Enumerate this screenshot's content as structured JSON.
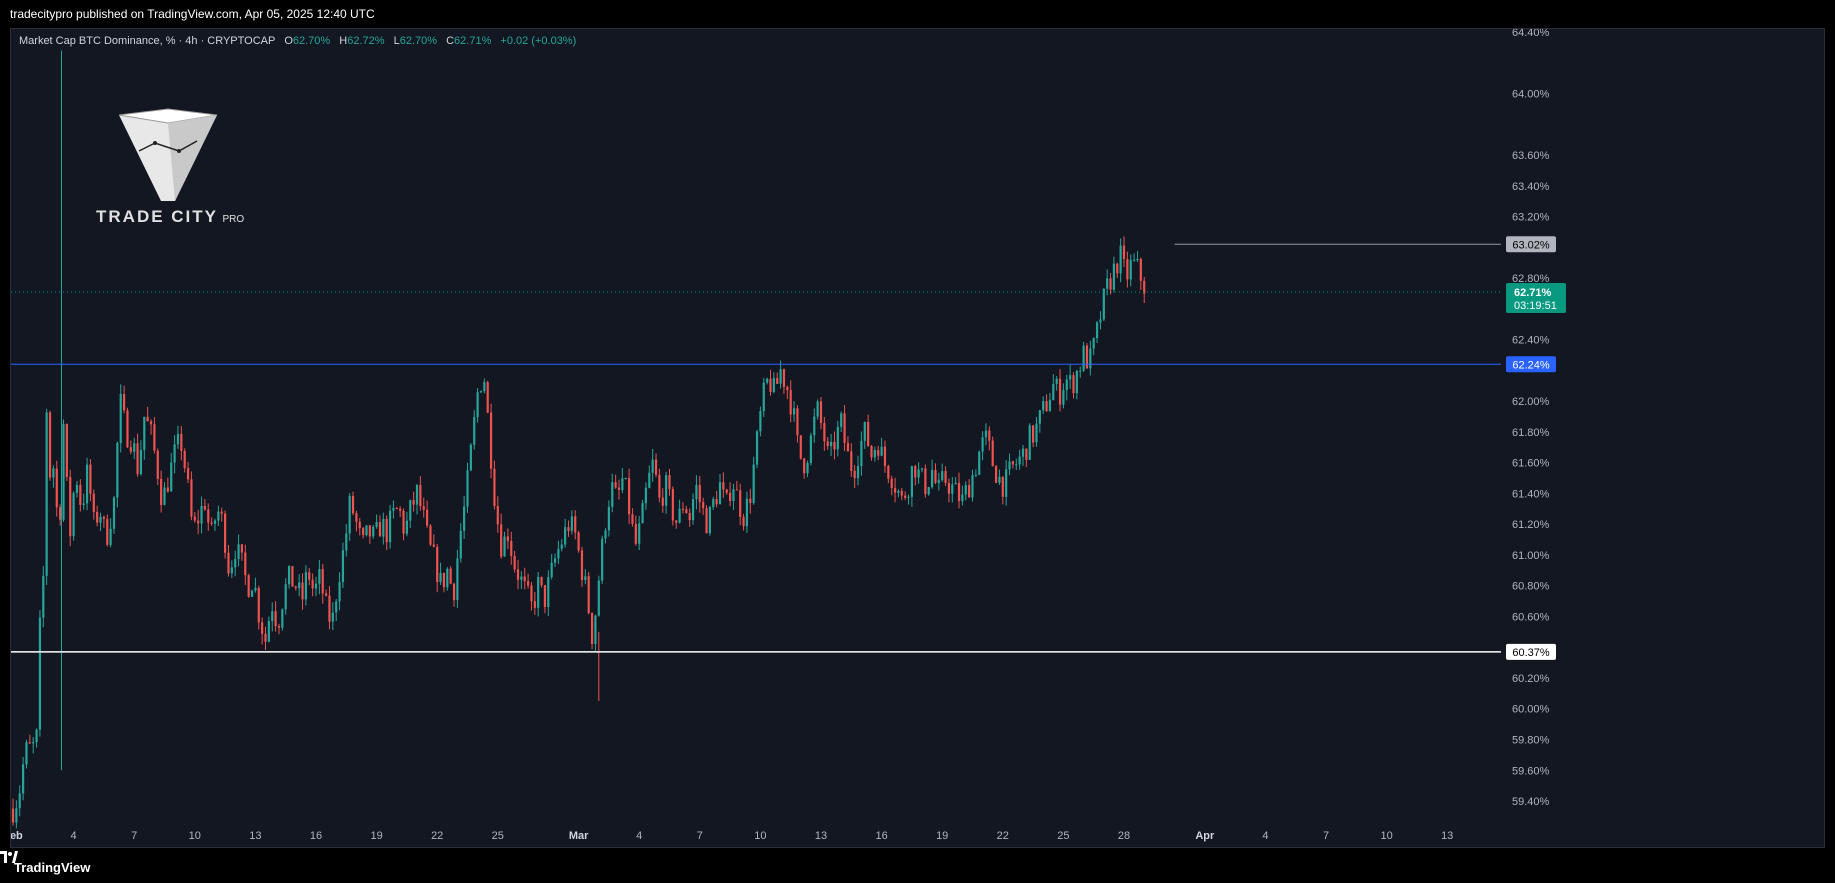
{
  "publish_line": "tradecitypro published on TradingView.com, Apr 05, 2025 12:40 UTC",
  "legend": {
    "symbol": "Market Cap BTC Dominance, % · 4h · CRYPTOCAP",
    "open_label": "O",
    "open": "62.70%",
    "high_label": "H",
    "high": "62.72%",
    "low_label": "L",
    "low": "62.70%",
    "close_label": "C",
    "close": "62.71%",
    "change": "+0.02 (+0.03%)"
  },
  "logo": {
    "main": "TRADE CITY",
    "sub": "PRO"
  },
  "footer": {
    "brand": "TradingView"
  },
  "colors": {
    "background": "#131722",
    "up": "#26a69a",
    "down": "#ef5350",
    "resistance_line": "#2962ff",
    "support_line": "#ffffff",
    "top_line": "#9598a1",
    "current_price_tag": "#089981"
  },
  "chart_data": {
    "type": "candlestick",
    "timeframe": "4h",
    "y_axis_ticks": [
      "64.40%",
      "64.00%",
      "63.60%",
      "63.40%",
      "63.20%",
      "62.80%",
      "62.40%",
      "62.00%",
      "61.80%",
      "61.60%",
      "61.40%",
      "61.20%",
      "61.00%",
      "60.80%",
      "60.60%",
      "60.20%",
      "60.00%",
      "59.80%",
      "59.60%",
      "59.40%"
    ],
    "y_ticks_values": [
      64.4,
      64.0,
      63.6,
      63.4,
      63.2,
      62.8,
      62.4,
      62.0,
      61.8,
      61.6,
      61.4,
      61.2,
      61.0,
      60.8,
      60.6,
      60.2,
      60.0,
      59.8,
      59.6,
      59.4
    ],
    "ylim": [
      59.27,
      64.42
    ],
    "x_axis_ticks": [
      {
        "label": "Feb",
        "day": 1,
        "bold": true
      },
      {
        "label": "4",
        "day": 4
      },
      {
        "label": "7",
        "day": 7
      },
      {
        "label": "10",
        "day": 10
      },
      {
        "label": "13",
        "day": 13
      },
      {
        "label": "16",
        "day": 16
      },
      {
        "label": "19",
        "day": 19
      },
      {
        "label": "22",
        "day": 22
      },
      {
        "label": "25",
        "day": 25
      },
      {
        "label": "Mar",
        "day": 29,
        "bold": true
      },
      {
        "label": "4",
        "day": 32
      },
      {
        "label": "7",
        "day": 35
      },
      {
        "label": "10",
        "day": 38
      },
      {
        "label": "13",
        "day": 41
      },
      {
        "label": "16",
        "day": 44
      },
      {
        "label": "19",
        "day": 47
      },
      {
        "label": "22",
        "day": 50
      },
      {
        "label": "25",
        "day": 53
      },
      {
        "label": "28",
        "day": 56
      },
      {
        "label": "Apr",
        "day": 60,
        "bold": true
      },
      {
        "label": "4",
        "day": 63
      },
      {
        "label": "7",
        "day": 66
      },
      {
        "label": "10",
        "day": 69
      },
      {
        "label": "13",
        "day": 72
      }
    ],
    "price_levels": [
      {
        "name": "range-top",
        "value": 63.02,
        "label": "63.02%"
      },
      {
        "name": "resistance",
        "value": 62.24,
        "label": "62.24%"
      },
      {
        "name": "support",
        "value": 60.37,
        "label": "60.37%"
      }
    ],
    "current_price": {
      "value": 62.71,
      "label": "62.71%",
      "countdown": "03:19:51"
    },
    "closes_path": [
      [
        1.0,
        59.35
      ],
      [
        1.3,
        59.45
      ],
      [
        1.6,
        59.72
      ],
      [
        2.0,
        59.75
      ],
      [
        2.2,
        59.82
      ],
      [
        2.3,
        60.45
      ],
      [
        2.5,
        60.85
      ],
      [
        2.6,
        61.55
      ],
      [
        2.7,
        62.15
      ],
      [
        2.8,
        61.4
      ],
      [
        2.9,
        61.8
      ],
      [
        3.1,
        61.35
      ],
      [
        3.3,
        61.2
      ],
      [
        3.5,
        61.85
      ],
      [
        3.8,
        61.1
      ],
      [
        4.1,
        61.55
      ],
      [
        4.4,
        61.3
      ],
      [
        4.7,
        61.55
      ],
      [
        5.0,
        61.2
      ],
      [
        5.3,
        61.3
      ],
      [
        5.6,
        61.1
      ],
      [
        6.0,
        61.35
      ],
      [
        6.3,
        62.0
      ],
      [
        6.6,
        61.8
      ],
      [
        6.9,
        61.75
      ],
      [
        7.2,
        61.55
      ],
      [
        7.5,
        61.9
      ],
      [
        7.8,
        61.8
      ],
      [
        8.1,
        61.6
      ],
      [
        8.4,
        61.35
      ],
      [
        8.7,
        61.5
      ],
      [
        9.0,
        61.65
      ],
      [
        9.3,
        61.75
      ],
      [
        9.6,
        61.5
      ],
      [
        9.9,
        61.15
      ],
      [
        10.2,
        61.25
      ],
      [
        10.5,
        61.35
      ],
      [
        10.8,
        61.1
      ],
      [
        11.1,
        61.3
      ],
      [
        11.4,
        61.2
      ],
      [
        11.7,
        60.9
      ],
      [
        12.0,
        61.05
      ],
      [
        12.3,
        60.95
      ],
      [
        12.6,
        60.8
      ],
      [
        12.9,
        60.85
      ],
      [
        13.2,
        60.6
      ],
      [
        13.5,
        60.45
      ],
      [
        13.8,
        60.7
      ],
      [
        14.1,
        60.55
      ],
      [
        14.4,
        60.75
      ],
      [
        14.7,
        60.85
      ],
      [
        15.0,
        60.8
      ],
      [
        15.3,
        60.7
      ],
      [
        15.6,
        60.9
      ],
      [
        15.9,
        60.75
      ],
      [
        16.2,
        60.85
      ],
      [
        16.5,
        60.65
      ],
      [
        16.8,
        60.55
      ],
      [
        17.1,
        60.85
      ],
      [
        17.4,
        61.05
      ],
      [
        17.7,
        61.35
      ],
      [
        18.0,
        61.2
      ],
      [
        18.3,
        61.05
      ],
      [
        18.6,
        61.15
      ],
      [
        18.9,
        61.1
      ],
      [
        19.2,
        61.2
      ],
      [
        19.5,
        61.15
      ],
      [
        19.8,
        61.25
      ],
      [
        20.1,
        61.3
      ],
      [
        20.4,
        61.15
      ],
      [
        20.7,
        61.3
      ],
      [
        21.0,
        61.4
      ],
      [
        21.3,
        61.25
      ],
      [
        21.6,
        61.05
      ],
      [
        21.9,
        60.95
      ],
      [
        22.2,
        60.8
      ],
      [
        22.5,
        60.9
      ],
      [
        22.8,
        60.75
      ],
      [
        23.1,
        61.1
      ],
      [
        23.4,
        61.35
      ],
      [
        23.7,
        61.7
      ],
      [
        24.0,
        62.05
      ],
      [
        24.3,
        62.2
      ],
      [
        24.6,
        61.75
      ],
      [
        24.9,
        61.3
      ],
      [
        25.2,
        61.05
      ],
      [
        25.5,
        61.15
      ],
      [
        25.8,
        60.95
      ],
      [
        26.1,
        60.85
      ],
      [
        26.4,
        60.75
      ],
      [
        26.7,
        60.65
      ],
      [
        27.0,
        60.8
      ],
      [
        27.3,
        60.7
      ],
      [
        27.6,
        60.85
      ],
      [
        27.9,
        61.0
      ],
      [
        28.2,
        61.1
      ],
      [
        28.5,
        61.2
      ],
      [
        28.8,
        61.15
      ],
      [
        29.1,
        60.95
      ],
      [
        29.4,
        60.75
      ],
      [
        29.7,
        60.45
      ],
      [
        30.0,
        60.85
      ],
      [
        30.3,
        61.2
      ],
      [
        30.6,
        61.45
      ],
      [
        30.9,
        61.35
      ],
      [
        31.2,
        61.5
      ],
      [
        31.5,
        61.3
      ],
      [
        31.8,
        61.05
      ],
      [
        32.1,
        61.2
      ],
      [
        32.4,
        61.45
      ],
      [
        32.7,
        61.6
      ],
      [
        33.0,
        61.35
      ],
      [
        33.3,
        61.45
      ],
      [
        33.6,
        61.3
      ],
      [
        33.9,
        61.2
      ],
      [
        34.2,
        61.35
      ],
      [
        34.5,
        61.25
      ],
      [
        34.8,
        61.45
      ],
      [
        35.1,
        61.3
      ],
      [
        35.4,
        61.2
      ],
      [
        35.7,
        61.35
      ],
      [
        36.0,
        61.45
      ],
      [
        36.3,
        61.3
      ],
      [
        36.6,
        61.5
      ],
      [
        36.9,
        61.35
      ],
      [
        37.2,
        61.25
      ],
      [
        37.5,
        61.4
      ],
      [
        37.8,
        61.7
      ],
      [
        38.1,
        62.0
      ],
      [
        38.4,
        62.15
      ],
      [
        38.7,
        62.05
      ],
      [
        39.0,
        62.2
      ],
      [
        39.3,
        62.1
      ],
      [
        39.6,
        61.95
      ],
      [
        39.9,
        61.65
      ],
      [
        40.2,
        61.6
      ],
      [
        40.5,
        61.75
      ],
      [
        40.8,
        61.95
      ],
      [
        41.1,
        61.8
      ],
      [
        41.4,
        61.6
      ],
      [
        41.7,
        61.75
      ],
      [
        42.0,
        61.85
      ],
      [
        42.3,
        61.65
      ],
      [
        42.6,
        61.55
      ],
      [
        42.9,
        61.7
      ],
      [
        43.2,
        61.8
      ],
      [
        43.5,
        61.65
      ],
      [
        43.8,
        61.75
      ],
      [
        44.1,
        61.6
      ],
      [
        44.4,
        61.55
      ],
      [
        44.7,
        61.45
      ],
      [
        45.0,
        61.35
      ],
      [
        45.3,
        61.45
      ],
      [
        45.6,
        61.6
      ],
      [
        45.9,
        61.5
      ],
      [
        46.2,
        61.45
      ],
      [
        46.5,
        61.55
      ],
      [
        46.8,
        61.4
      ],
      [
        47.1,
        61.5
      ],
      [
        47.4,
        61.45
      ],
      [
        47.7,
        61.4
      ],
      [
        48.0,
        61.35
      ],
      [
        48.3,
        61.45
      ],
      [
        48.6,
        61.55
      ],
      [
        48.9,
        61.7
      ],
      [
        49.2,
        61.75
      ],
      [
        49.5,
        61.6
      ],
      [
        49.8,
        61.5
      ],
      [
        50.1,
        61.45
      ],
      [
        50.4,
        61.55
      ],
      [
        50.7,
        61.6
      ],
      [
        51.0,
        61.65
      ],
      [
        51.3,
        61.75
      ],
      [
        51.6,
        61.8
      ],
      [
        51.9,
        61.9
      ],
      [
        52.2,
        62.0
      ],
      [
        52.5,
        62.1
      ],
      [
        52.8,
        62.05
      ],
      [
        53.1,
        62.15
      ],
      [
        53.4,
        62.1
      ],
      [
        53.7,
        62.2
      ],
      [
        54.0,
        62.3
      ],
      [
        54.3,
        62.25
      ],
      [
        54.6,
        62.4
      ],
      [
        54.9,
        62.6
      ],
      [
        55.2,
        62.75
      ],
      [
        55.5,
        62.85
      ],
      [
        55.8,
        62.95
      ],
      [
        56.1,
        62.8
      ],
      [
        56.4,
        62.9
      ],
      [
        56.7,
        62.85
      ],
      [
        57.0,
        62.75
      ]
    ]
  }
}
